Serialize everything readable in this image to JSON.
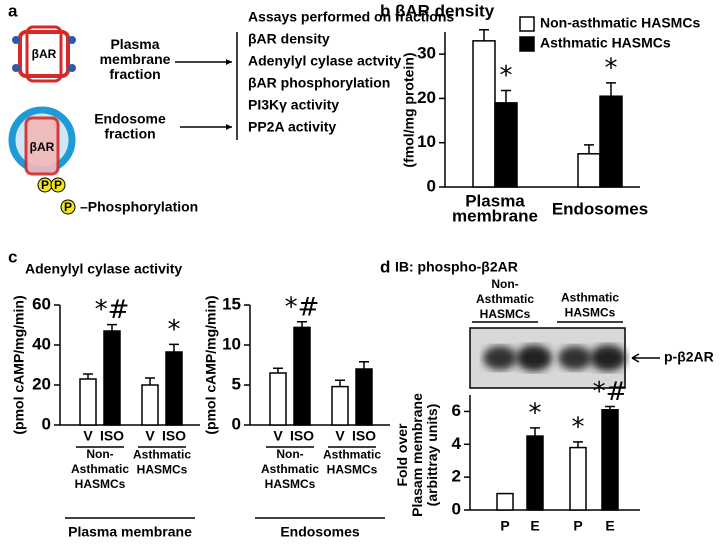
{
  "diagram": {
    "panel": "a",
    "title": "Assays performed on fractions",
    "fractions": [
      {
        "label": "Plasma\nmembrane\nfraction",
        "receptor": "βAR"
      },
      {
        "label": "Endosome\nfraction",
        "receptor": "βAR"
      }
    ],
    "assays": [
      "βAR density",
      "Adenylyl cylase actvity",
      "βAR phosphorylation",
      "PI3Kγ activity",
      "PP2A activity"
    ],
    "phospho_symbol": "P",
    "legend": "–Phosphorylation"
  },
  "chart_data": [
    {
      "type": "bar",
      "panel": "b",
      "title": "βAR density",
      "ylabel": "(fmol/mg protein)",
      "categories": [
        "Plasma\nmembrane",
        "Endosomes"
      ],
      "series": [
        {
          "name": "Non-asthmatic HASMCs",
          "color": "#ffffff",
          "values": [
            33,
            7.5
          ],
          "errors": [
            2.5,
            2
          ]
        },
        {
          "name": "Asthmatic HASMCs",
          "color": "#000000",
          "values": [
            19,
            20.5
          ],
          "errors": [
            2.8,
            3
          ],
          "annotations": [
            "*",
            "*"
          ]
        }
      ],
      "ylim": [
        0,
        35
      ],
      "yticks": [
        0,
        10,
        20,
        30
      ]
    },
    {
      "type": "bar",
      "panel": "c",
      "title": "Adenylyl cylase activity",
      "ylabel": "(pmol cAMP/mg/min)",
      "categories": [
        "V",
        "ISO",
        "V",
        "ISO"
      ],
      "colors": [
        "#ffffff",
        "#000000",
        "#ffffff",
        "#000000"
      ],
      "values": [
        23,
        47,
        20,
        36.5
      ],
      "errors": [
        2.5,
        3.2,
        3.5,
        3.8
      ],
      "annotations": [
        null,
        "*#",
        null,
        "*"
      ],
      "groups": [
        "Non-\nAsthmatic\nHASMCs",
        "Asthmatic\nHASMCs"
      ],
      "footer": "Plasma membrane",
      "ylim": [
        0,
        60
      ],
      "yticks": [
        0,
        20,
        40,
        60
      ]
    },
    {
      "type": "bar",
      "ylabel": "(pmol cAMP/mg/min)",
      "categories": [
        "V",
        "ISO",
        "V",
        "ISO"
      ],
      "colors": [
        "#ffffff",
        "#000000",
        "#ffffff",
        "#000000"
      ],
      "values": [
        6.5,
        12.2,
        4.8,
        7
      ],
      "errors": [
        0.6,
        0.7,
        0.8,
        0.9
      ],
      "annotations": [
        null,
        "*#",
        null,
        null
      ],
      "groups": [
        "Non-\nAsthmatic\nHASMCs",
        "Asthmatic\nHASMCs"
      ],
      "footer": "Endosomes",
      "ylim": [
        0,
        15
      ],
      "yticks": [
        0,
        5,
        10,
        15
      ]
    },
    {
      "type": "bar",
      "panel": "d",
      "title": "IB: phospho-β2AR",
      "blot_groups": [
        "Non-\nAsthmatic\nHASMCs",
        "Asthmatic\nHASMCs"
      ],
      "blot_label": "p-β2AR",
      "ylabel": "Fold over\nPlasam membrane\n(arbittray units)",
      "categories": [
        "P",
        "E",
        "P",
        "E"
      ],
      "colors": [
        "#ffffff",
        "#000000",
        "#ffffff",
        "#000000"
      ],
      "values": [
        1,
        4.5,
        3.8,
        6.1
      ],
      "errors": [
        0,
        0.5,
        0.35,
        0.2
      ],
      "annotations": [
        null,
        "*",
        "*",
        "*#"
      ],
      "ylim": [
        0,
        7
      ],
      "yticks": [
        0,
        2,
        4,
        6
      ]
    }
  ]
}
